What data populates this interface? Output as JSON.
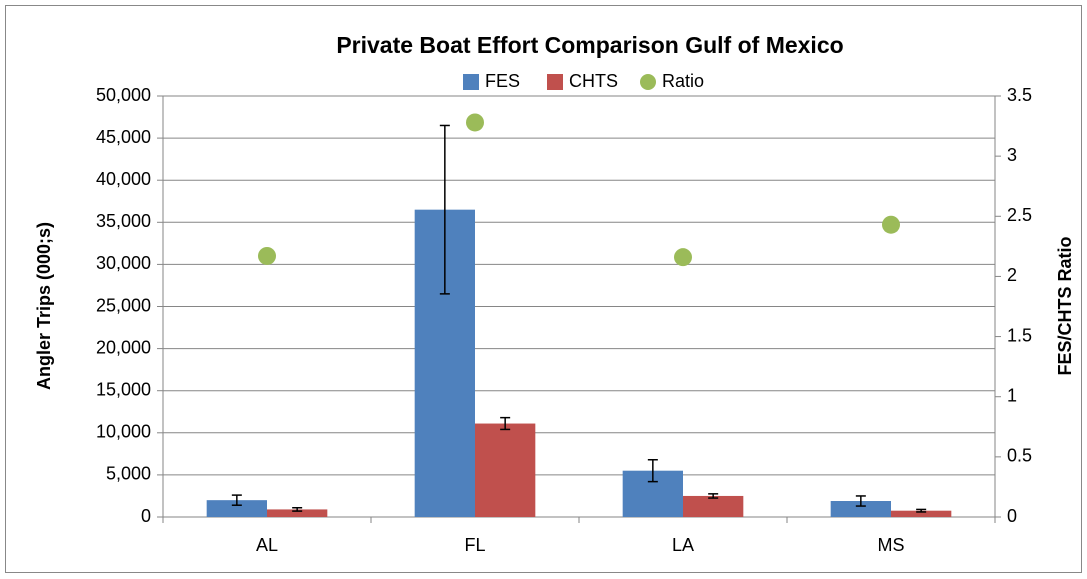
{
  "chart_data": {
    "type": "bar",
    "title": "Private Boat Effort Comparison Gulf of Mexico",
    "y_label": "Angler Trips (000;s)",
    "y2_label": "FES/CHTS Ratio",
    "categories": [
      "AL",
      "FL",
      "LA",
      "MS"
    ],
    "series": [
      {
        "name": "FES",
        "color": "#4f81bd",
        "values": [
          2000,
          36500,
          5500,
          1900
        ],
        "errors": [
          600,
          10000,
          1300,
          600
        ]
      },
      {
        "name": "CHTS",
        "color": "#c0504d",
        "values": [
          900,
          11100,
          2500,
          750
        ],
        "errors": [
          200,
          700,
          250,
          150
        ]
      },
      {
        "name": "Ratio",
        "type": "scatter",
        "axis": "y2",
        "color": "#9bbb59",
        "values": [
          2.17,
          3.28,
          2.16,
          2.43
        ]
      }
    ],
    "ylim": [
      0,
      50000
    ],
    "yticks": [
      0,
      {
        "value": 5000,
        "label": "5,000"
      },
      {
        "value": 10000,
        "label": "10,000"
      },
      {
        "value": 15000,
        "label": "15,000"
      },
      {
        "value": 20000,
        "label": "20,000"
      },
      {
        "value": 25000,
        "label": "25,000"
      },
      {
        "value": 30000,
        "label": "30,000"
      },
      {
        "value": 35000,
        "label": "35,000"
      },
      {
        "value": 40000,
        "label": "40,000"
      },
      {
        "value": 45000,
        "label": "45,000"
      },
      {
        "value": 50000,
        "label": "50,000"
      }
    ],
    "y2lim": [
      0,
      3.5
    ],
    "y2ticks": [
      0,
      0.5,
      1,
      1.5,
      2,
      2.5,
      3,
      3.5
    ],
    "grid": true,
    "legend": "top"
  }
}
